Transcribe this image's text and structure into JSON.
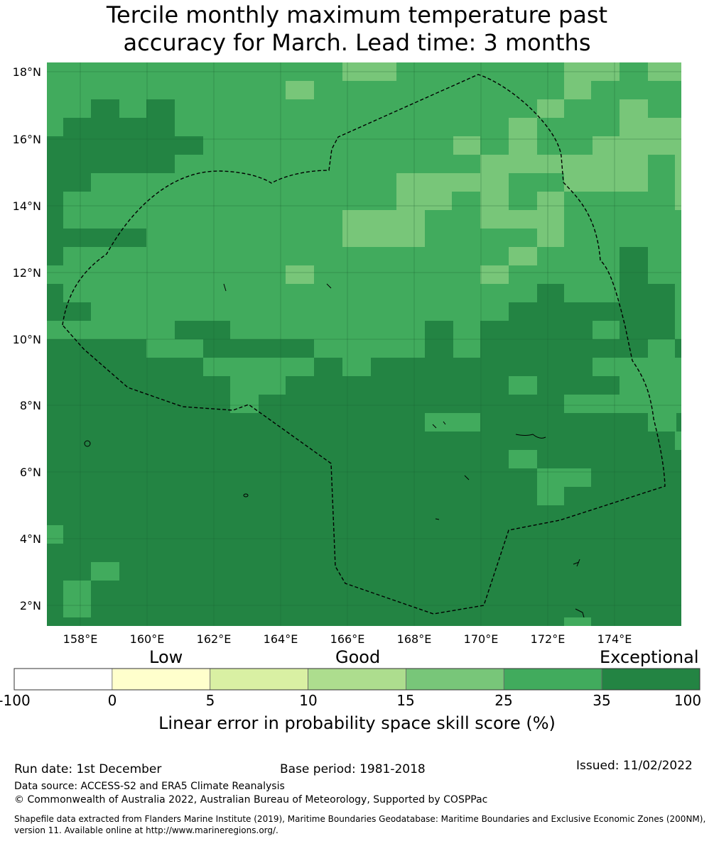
{
  "title_line1": "Tercile monthly maximum temperature past",
  "title_line2": "accuracy for March. Lead time: 3 months",
  "map": {
    "lon_range": [
      157.0,
      176.0
    ],
    "lat_range": [
      1.4,
      18.3
    ],
    "lon_ticks": [
      "158°E",
      "160°E",
      "162°E",
      "164°E",
      "166°E",
      "168°E",
      "170°E",
      "172°E",
      "174°E"
    ],
    "lat_ticks": [
      "2°N",
      "4°N",
      "6°N",
      "8°N",
      "10°N",
      "12°N",
      "14°N",
      "16°N",
      "18°N"
    ],
    "grid_lines": true,
    "colors": {
      "exceptional": "#238443",
      "good_high": "#41ab5d",
      "good_mid": "#78c679"
    }
  },
  "colorbar": {
    "group_labels": [
      "Low",
      "Good",
      "Exceptional"
    ],
    "ticks": [
      "-100",
      "0",
      "5",
      "10",
      "15",
      "25",
      "35",
      "100"
    ],
    "colors": [
      "#ffffff",
      "#ffffcc",
      "#d9f0a3",
      "#addd8e",
      "#78c679",
      "#41ab5d",
      "#238443"
    ],
    "label": "Linear error in probability space skill score (%)"
  },
  "footer": {
    "run_date": "Run date: 1st December",
    "base_period": "Base period: 1981-2018",
    "issued": "Issued: 11/02/2022",
    "data_source": "Data source: ACCESS-S2 and ERA5 Climate Reanalysis",
    "copyright": "© Commonwealth of Australia 2022, Australian Bureau of Meteorology, Supported by COSPPac",
    "shapefile_line1": "Shapefile data extracted from Flanders Marine Institute (2019), Maritime Boundaries Geodatabase: Maritime Boundaries and Exclusive Economic Zones (200NM),",
    "shapefile_line2": "version 11. Available online at http://www.marineregions.org/."
  }
}
